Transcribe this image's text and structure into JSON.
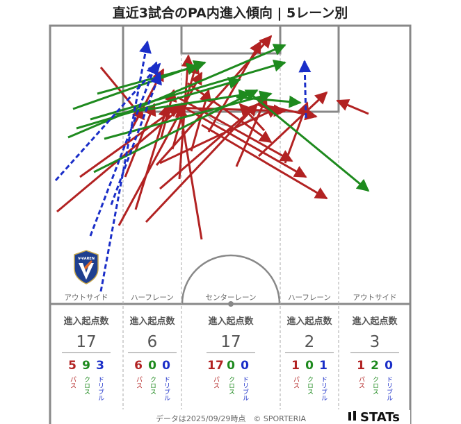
{
  "chart_data": {
    "type": "arrow-map",
    "title": "直近3試合のPA内進入傾向 | 5レーン別",
    "lanes": [
      {
        "name": "アウトサイド",
        "stat_label": "進入起点数",
        "total": "17",
        "pass": "5",
        "cross": "9",
        "dribble": "3"
      },
      {
        "name": "ハーフレーン",
        "stat_label": "進入起点数",
        "total": "6",
        "pass": "6",
        "cross": "0",
        "dribble": "0"
      },
      {
        "name": "センターレーン",
        "stat_label": "進入起点数",
        "total": "17",
        "pass": "17",
        "cross": "0",
        "dribble": "0"
      },
      {
        "name": "ハーフレーン",
        "stat_label": "進入起点数",
        "total": "2",
        "pass": "1",
        "cross": "0",
        "dribble": "1"
      },
      {
        "name": "アウトサイド",
        "stat_label": "進入起点数",
        "total": "3",
        "pass": "1",
        "cross": "2",
        "dribble": "0"
      }
    ],
    "legend": {
      "pass": "パス",
      "cross": "クロス",
      "dribble": "ドリブル"
    },
    "colors": {
      "pass": "#b22222",
      "cross": "#1e8a1e",
      "dribble": "#1a2ec8",
      "pitch": "#888888"
    },
    "footer": "データは2025/09/29時点　© SPORTERIA",
    "brand": "STATs",
    "crest_text": "V-VAREN"
  }
}
